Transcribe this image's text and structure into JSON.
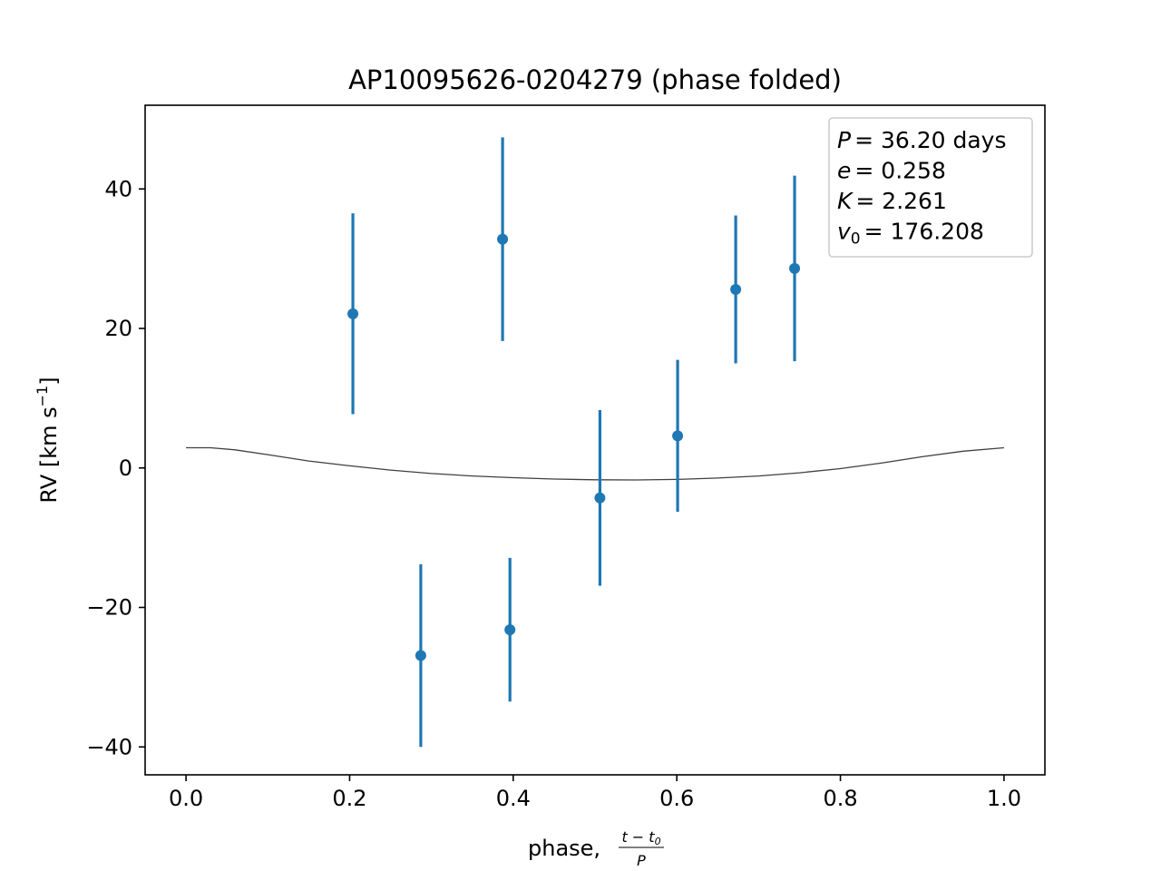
{
  "chart_data": {
    "type": "scatter",
    "title": "AP10095626-0204279 (phase folded)",
    "xlabel": "phase, (t − t0) / P",
    "ylabel": "RV [km s−1]",
    "xlim": [
      -0.05,
      1.05
    ],
    "ylim": [
      -44,
      52
    ],
    "x_ticks": [
      0.0,
      0.2,
      0.4,
      0.6,
      0.8,
      1.0
    ],
    "x_tick_labels": [
      "0.0",
      "0.2",
      "0.4",
      "0.6",
      "0.8",
      "1.0"
    ],
    "y_ticks": [
      -40,
      -20,
      0,
      20,
      40
    ],
    "y_tick_labels": [
      "−40",
      "−20",
      "0",
      "20",
      "40"
    ],
    "grid": false,
    "marker_color": "#1f77b4",
    "curve_color": "#404040",
    "points": [
      {
        "x": 0.204,
        "y": 22.1,
        "err": 14.4
      },
      {
        "x": 0.287,
        "y": -26.9,
        "err": 13.1
      },
      {
        "x": 0.387,
        "y": 32.8,
        "err": 14.6
      },
      {
        "x": 0.396,
        "y": -23.2,
        "err": 10.3
      },
      {
        "x": 0.506,
        "y": -4.3,
        "err": 12.6
      },
      {
        "x": 0.601,
        "y": 4.6,
        "err": 10.9
      },
      {
        "x": 0.672,
        "y": 25.6,
        "err": 10.6
      },
      {
        "x": 0.744,
        "y": 28.6,
        "err": 13.3
      }
    ],
    "model_curve": {
      "x": [
        0.0,
        0.03,
        0.06,
        0.1,
        0.15,
        0.2,
        0.25,
        0.3,
        0.35,
        0.4,
        0.45,
        0.5,
        0.55,
        0.6,
        0.65,
        0.7,
        0.75,
        0.8,
        0.85,
        0.9,
        0.95,
        1.0
      ],
      "y": [
        2.9,
        2.9,
        2.6,
        1.9,
        1.0,
        0.3,
        -0.3,
        -0.8,
        -1.15,
        -1.4,
        -1.6,
        -1.7,
        -1.72,
        -1.65,
        -1.45,
        -1.15,
        -0.7,
        -0.1,
        0.7,
        1.6,
        2.4,
        2.9
      ]
    },
    "legend": {
      "placement": "top-right",
      "lines": [
        {
          "var": "P",
          "sub": "",
          "value": "= 36.20 days"
        },
        {
          "var": "e",
          "sub": "",
          "value": "= 0.258"
        },
        {
          "var": "K",
          "sub": "",
          "value": "= 2.261"
        },
        {
          "var": "v",
          "sub": "0",
          "value": "= 176.208"
        }
      ]
    }
  }
}
